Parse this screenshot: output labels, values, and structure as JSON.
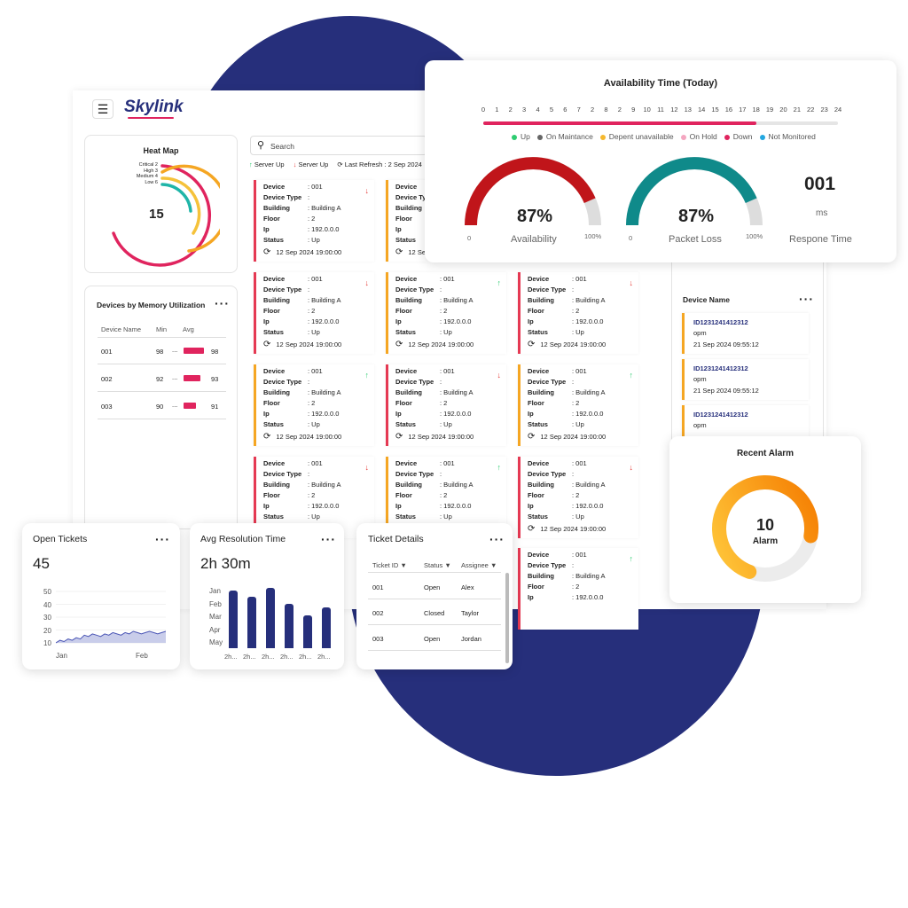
{
  "brand": {
    "name": "Skylink"
  },
  "heat_map": {
    "title": "Heat Map",
    "value": "15",
    "legend": [
      "Critical 2",
      "High 3",
      "Medium 4",
      "Low 6"
    ]
  },
  "memory": {
    "title": "Devices by Memory Utilization",
    "headers": [
      "Device Name",
      "Min",
      "Avg"
    ],
    "rows": [
      {
        "name": "001",
        "min": "98",
        "dots": "...",
        "avg": "98",
        "frac": 0.95
      },
      {
        "name": "002",
        "min": "92",
        "dots": "...",
        "avg": "93",
        "frac": 0.8
      },
      {
        "name": "003",
        "min": "90",
        "dots": "...",
        "avg": "91",
        "frac": 0.6
      }
    ]
  },
  "search": {
    "placeholder": "Search"
  },
  "status_bar": {
    "server_up1": "Server Up",
    "server_up2": "Server Up",
    "last_refresh": "Last Refresh : 2 Sep 2024"
  },
  "device_labels": {
    "device": "Device",
    "type": "Device Type",
    "building": "Building",
    "floor": "Floor",
    "ip": "Ip",
    "status": "Status",
    "type_cut": "Device Typ"
  },
  "device": {
    "device": ": 001",
    "type": ":",
    "building": ": Building A",
    "floor": ": 2",
    "ip": ": 192.0.0.0",
    "status": ": Up",
    "timestamp": "12 Sep 2024 19:00:00"
  },
  "availability": {
    "title": "Availability Time (Today)",
    "hours": [
      "0",
      "1",
      "2",
      "3",
      "4",
      "5",
      "6",
      "7",
      "2",
      "8",
      "2",
      "9",
      "10",
      "11",
      "12",
      "13",
      "14",
      "15",
      "16",
      "17",
      "18",
      "19",
      "20",
      "21",
      "22",
      "23",
      "24"
    ],
    "progress_hour": 18,
    "legend": [
      {
        "label": "Up",
        "color": "#2ecc71"
      },
      {
        "label": "On Maintance",
        "color": "#666666"
      },
      {
        "label": "Depent unavailable",
        "color": "#f5b82e"
      },
      {
        "label": "On Hold",
        "color": "#f4a6c0"
      },
      {
        "label": "Down",
        "color": "#e0245e"
      },
      {
        "label": "Not Monitored",
        "color": "#23a7e0"
      }
    ],
    "gauge1": {
      "value": "87%",
      "label": "Availability",
      "min": "0",
      "max": "100%",
      "percent": 87
    },
    "gauge2": {
      "value": "87%",
      "label": "Packet Loss",
      "min": "0",
      "max": "100%",
      "percent": 87
    },
    "response": {
      "value": "001",
      "unit": "ms",
      "label": "Respone Time"
    }
  },
  "device_name_panel": {
    "title": "Device Name",
    "items": [
      {
        "id": "ID1231241412312",
        "sub": "opm",
        "time": "21 Sep 2024 09:55:12"
      },
      {
        "id": "ID1231241412312",
        "sub": "opm",
        "time": "21 Sep 2024 09:55:12"
      },
      {
        "id": "ID1231241412312",
        "sub": "opm",
        "time": ""
      }
    ]
  },
  "recent_alarm": {
    "title": "Recent Alarm",
    "value": "10",
    "label": "Alarm",
    "percent": 72
  },
  "open_tickets": {
    "title": "Open Tickets",
    "value": "45",
    "yticks": [
      "50",
      "40",
      "30",
      "20",
      "10"
    ],
    "xticks": [
      "Jan",
      "Feb"
    ],
    "chart_data": {
      "type": "area",
      "y": [
        10,
        12,
        11,
        13,
        12,
        14,
        13,
        16,
        15,
        17,
        16,
        15,
        17,
        16,
        18,
        17,
        16,
        18,
        17,
        19,
        18,
        17,
        18,
        19,
        18,
        17,
        18,
        19
      ],
      "ylim": [
        10,
        50
      ]
    }
  },
  "avg_resolution": {
    "title": "Avg Resolution Time",
    "value": "2h 30m",
    "yticks": [
      "Jan",
      "Feb",
      "Mar",
      "Apr",
      "May"
    ],
    "xticks": [
      "2h...",
      "2h...",
      "2h...",
      "2h...",
      "2h...",
      "2h..."
    ],
    "chart_data": {
      "type": "bar",
      "values": [
        0.95,
        0.85,
        1.0,
        0.73,
        0.55,
        0.67
      ]
    }
  },
  "ticket_details": {
    "title": "Ticket Details",
    "headers": [
      "Ticket ID",
      "Status",
      "Assignee"
    ],
    "rows": [
      {
        "id": "001",
        "status": "Open",
        "assignee": "Alex"
      },
      {
        "id": "002",
        "status": "Closed",
        "assignee": "Taylor"
      },
      {
        "id": "003",
        "status": "Open",
        "assignee": "Jordan"
      }
    ]
  },
  "colors": {
    "navy": "#262f7b",
    "red": "#e0245e",
    "orange": "#f5a623",
    "teal": "#0f8a8a"
  }
}
